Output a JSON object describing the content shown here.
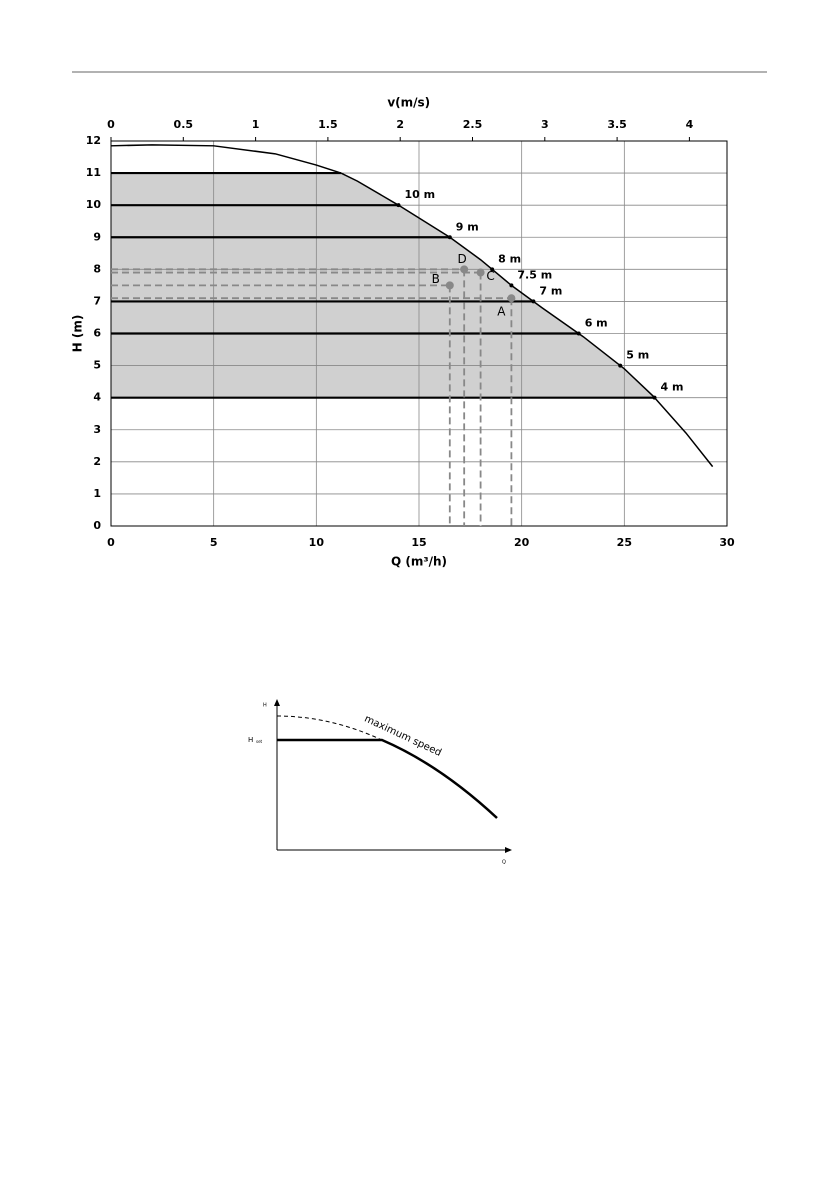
{
  "chart_data": {
    "type": "line",
    "x_label": "Q (m³/h)",
    "y_label": "H (m)",
    "x2_label": "v(m/s)",
    "xlim": [
      0,
      30
    ],
    "xticks": [
      0,
      5,
      10,
      15,
      20,
      25,
      30
    ],
    "ylim": [
      0,
      12
    ],
    "yticks": [
      0,
      1,
      2,
      3,
      4,
      5,
      6,
      7,
      8,
      9,
      10,
      11,
      12
    ],
    "x2lim": [
      0,
      4.26
    ],
    "x2ticks": [
      0,
      0.5,
      1,
      1.5,
      2,
      2.5,
      3,
      3.5,
      4
    ],
    "grid": true,
    "series": [
      {
        "color": "#000000",
        "x": [
          0,
          2,
          5,
          8,
          10,
          11.2,
          12,
          14,
          16.5,
          18,
          19.5,
          21,
          23,
          25,
          26.4,
          28,
          29.3
        ],
        "values": [
          11.85,
          11.88,
          11.85,
          11.6,
          11.25,
          11,
          10.75,
          10.0,
          9.0,
          8.3,
          7.5,
          6.8,
          5.9,
          4.9,
          4.05,
          2.9,
          1.85
        ]
      }
    ],
    "levels": [
      11,
      10,
      9,
      7,
      6,
      4
    ],
    "setpoint_values": [
      10,
      9,
      8,
      7.5,
      7,
      6,
      5,
      4
    ],
    "setpoint_labels": [
      "10 m",
      "9 m",
      "8 m",
      "7.5 m",
      "7 m",
      "6 m",
      "5 m",
      "4 m"
    ],
    "points": [
      {
        "label": "A",
        "x": 19.5,
        "y": 7.1
      },
      {
        "label": "B",
        "x": 16.5,
        "y": 7.5
      },
      {
        "label": "C",
        "x": 18,
        "y": 7.9
      },
      {
        "label": "D",
        "x": 17.2,
        "y": 8.0
      }
    ]
  },
  "diagram": {
    "y_label": "H",
    "set_label": "H",
    "set_sub": "set",
    "curve_label": "maximum speed",
    "x_label": "Q"
  }
}
